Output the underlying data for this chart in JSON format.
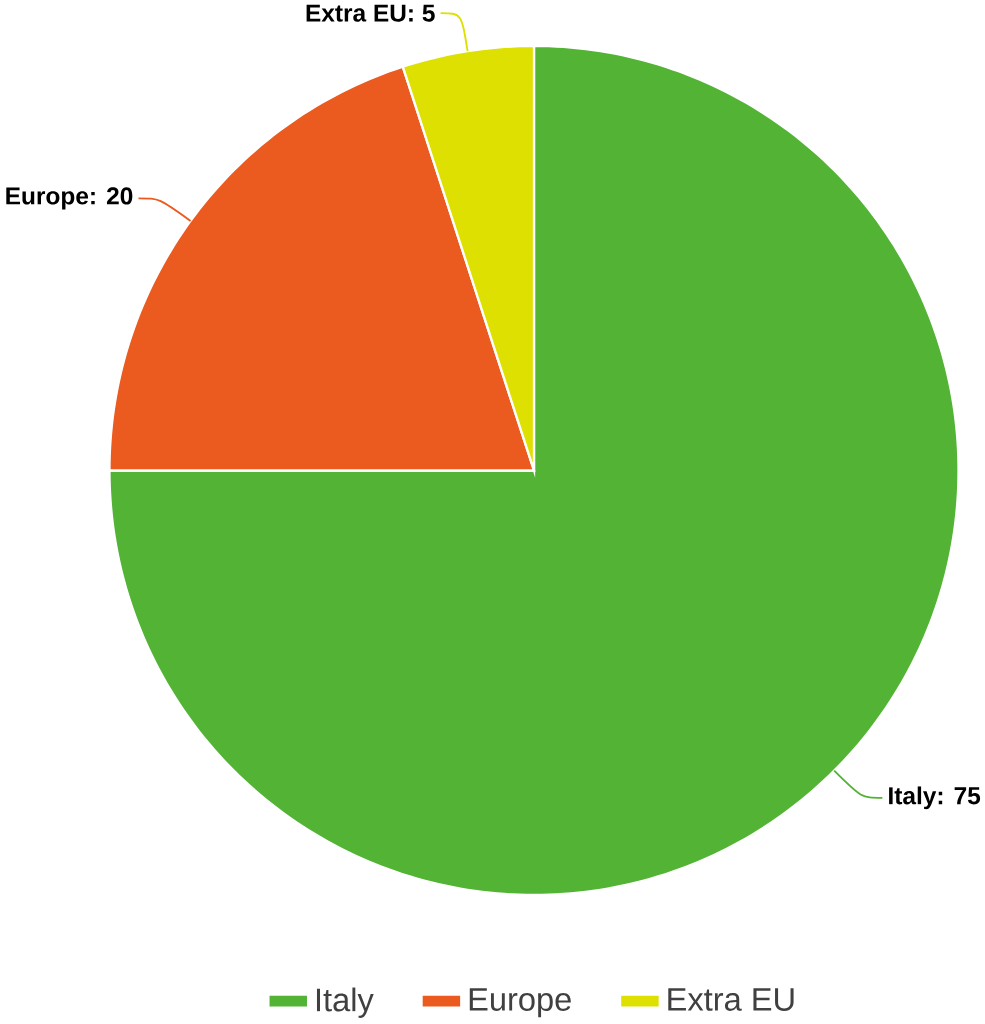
{
  "chart_data": {
    "type": "pie",
    "categories": [
      "Italy",
      "Europe",
      "Extra EU"
    ],
    "values": [
      75,
      20,
      5
    ],
    "colors": [
      "#52b335",
      "#eb5a1e",
      "#dde000"
    ],
    "value_labels": [
      "Italy: 75",
      "Europe: 20",
      "Extra EU: 5"
    ],
    "legend": "bottom"
  }
}
